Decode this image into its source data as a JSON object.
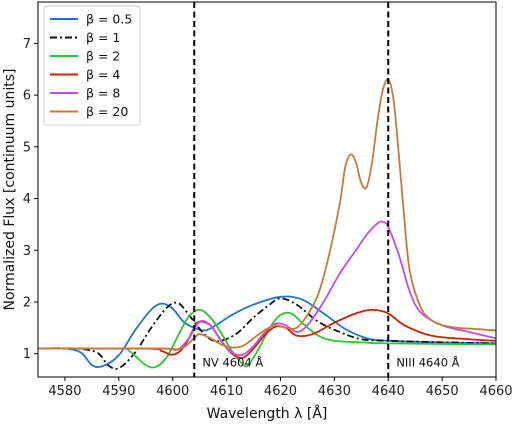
{
  "chart_data": {
    "type": "line",
    "xlabel": "Wavelength λ [Å]",
    "ylabel": "Normalized Flux [continuum units]",
    "xlim": [
      4575,
      4660
    ],
    "ylim": [
      0.55,
      7.8
    ],
    "x_ticks": [
      4580,
      4590,
      4600,
      4610,
      4620,
      4630,
      4640,
      4650,
      4660
    ],
    "y_ticks": [
      1,
      2,
      3,
      4,
      5,
      6,
      7
    ],
    "grid": false,
    "legend_placement": "top-left",
    "series": [
      {
        "name": "β = 0.5",
        "color": "#1f77d4",
        "dash": "solid",
        "points": [
          [
            4575,
            1.1
          ],
          [
            4580,
            1.1
          ],
          [
            4583,
            1.02
          ],
          [
            4585,
            0.78
          ],
          [
            4587,
            0.76
          ],
          [
            4590,
            0.97
          ],
          [
            4593,
            1.45
          ],
          [
            4596,
            1.85
          ],
          [
            4598,
            1.97
          ],
          [
            4600,
            1.87
          ],
          [
            4602,
            1.62
          ],
          [
            4604,
            1.5
          ],
          [
            4606,
            1.45
          ],
          [
            4608,
            1.55
          ],
          [
            4611,
            1.75
          ],
          [
            4615,
            1.95
          ],
          [
            4620,
            2.1
          ],
          [
            4624,
            2.05
          ],
          [
            4628,
            1.78
          ],
          [
            4632,
            1.48
          ],
          [
            4636,
            1.3
          ],
          [
            4640,
            1.25
          ],
          [
            4650,
            1.22
          ],
          [
            4660,
            1.2
          ]
        ]
      },
      {
        "name": "β = 1",
        "color": "#111111",
        "dash": "dashdot",
        "points": [
          [
            4575,
            1.1
          ],
          [
            4582,
            1.1
          ],
          [
            4586,
            1.02
          ],
          [
            4588,
            0.78
          ],
          [
            4590,
            0.72
          ],
          [
            4593,
            1.02
          ],
          [
            4596,
            1.5
          ],
          [
            4599,
            1.9
          ],
          [
            4601,
            1.98
          ],
          [
            4603,
            1.75
          ],
          [
            4605,
            1.48
          ],
          [
            4607,
            1.28
          ],
          [
            4609,
            1.25
          ],
          [
            4612,
            1.4
          ],
          [
            4615,
            1.7
          ],
          [
            4618,
            1.95
          ],
          [
            4620,
            2.07
          ],
          [
            4623,
            1.95
          ],
          [
            4627,
            1.62
          ],
          [
            4631,
            1.42
          ],
          [
            4635,
            1.28
          ],
          [
            4640,
            1.25
          ],
          [
            4650,
            1.22
          ],
          [
            4660,
            1.2
          ]
        ]
      },
      {
        "name": "β = 2",
        "color": "#2ec62e",
        "dash": "solid",
        "points": [
          [
            4575,
            1.1
          ],
          [
            4590,
            1.1
          ],
          [
            4592,
            1.05
          ],
          [
            4595,
            0.78
          ],
          [
            4597,
            0.75
          ],
          [
            4599,
            0.95
          ],
          [
            4601,
            1.35
          ],
          [
            4603,
            1.72
          ],
          [
            4605,
            1.85
          ],
          [
            4607,
            1.7
          ],
          [
            4609,
            1.4
          ],
          [
            4611,
            1.05
          ],
          [
            4613,
            0.8
          ],
          [
            4614,
            0.78
          ],
          [
            4616,
            1.1
          ],
          [
            4618,
            1.5
          ],
          [
            4620,
            1.75
          ],
          [
            4622,
            1.78
          ],
          [
            4624,
            1.6
          ],
          [
            4627,
            1.35
          ],
          [
            4630,
            1.25
          ],
          [
            4635,
            1.22
          ],
          [
            4640,
            1.2
          ],
          [
            4660,
            1.18
          ]
        ]
      },
      {
        "name": "β = 4",
        "color": "#cc2200",
        "dash": "solid",
        "points": [
          [
            4575,
            1.1
          ],
          [
            4595,
            1.1
          ],
          [
            4598,
            1.05
          ],
          [
            4600,
            0.98
          ],
          [
            4602,
            1.12
          ],
          [
            4604,
            1.5
          ],
          [
            4605,
            1.62
          ],
          [
            4607,
            1.55
          ],
          [
            4609,
            1.25
          ],
          [
            4611,
            1.0
          ],
          [
            4613,
            0.92
          ],
          [
            4615,
            1.1
          ],
          [
            4617,
            1.35
          ],
          [
            4619,
            1.52
          ],
          [
            4621,
            1.5
          ],
          [
            4623,
            1.35
          ],
          [
            4626,
            1.38
          ],
          [
            4630,
            1.6
          ],
          [
            4634,
            1.78
          ],
          [
            4637,
            1.85
          ],
          [
            4640,
            1.78
          ],
          [
            4643,
            1.55
          ],
          [
            4648,
            1.35
          ],
          [
            4655,
            1.28
          ],
          [
            4660,
            1.25
          ]
        ]
      },
      {
        "name": "β = 8",
        "color": "#c44de8",
        "dash": "solid",
        "points": [
          [
            4575,
            1.1
          ],
          [
            4595,
            1.1
          ],
          [
            4599,
            1.1
          ],
          [
            4601,
            1.08
          ],
          [
            4603,
            1.3
          ],
          [
            4605,
            1.62
          ],
          [
            4607,
            1.55
          ],
          [
            4609,
            1.25
          ],
          [
            4611,
            1.02
          ],
          [
            4613,
            0.98
          ],
          [
            4615,
            1.15
          ],
          [
            4617,
            1.4
          ],
          [
            4619,
            1.58
          ],
          [
            4621,
            1.55
          ],
          [
            4623,
            1.42
          ],
          [
            4625,
            1.55
          ],
          [
            4628,
            2.0
          ],
          [
            4631,
            2.55
          ],
          [
            4634,
            3.0
          ],
          [
            4636,
            3.3
          ],
          [
            4638,
            3.52
          ],
          [
            4639,
            3.55
          ],
          [
            4640,
            3.45
          ],
          [
            4642,
            2.9
          ],
          [
            4644,
            2.2
          ],
          [
            4646,
            1.8
          ],
          [
            4650,
            1.55
          ],
          [
            4655,
            1.42
          ],
          [
            4660,
            1.3
          ]
        ]
      },
      {
        "name": "β = 20",
        "color": "#c87a3a",
        "dash": "solid",
        "points": [
          [
            4575,
            1.1
          ],
          [
            4598,
            1.1
          ],
          [
            4600,
            1.08
          ],
          [
            4602,
            1.12
          ],
          [
            4604,
            1.3
          ],
          [
            4605,
            1.38
          ],
          [
            4607,
            1.3
          ],
          [
            4609,
            1.18
          ],
          [
            4611,
            1.12
          ],
          [
            4613,
            1.15
          ],
          [
            4615,
            1.3
          ],
          [
            4617,
            1.45
          ],
          [
            4619,
            1.55
          ],
          [
            4621,
            1.5
          ],
          [
            4623,
            1.5
          ],
          [
            4625,
            1.75
          ],
          [
            4627,
            2.15
          ],
          [
            4629,
            2.9
          ],
          [
            4631,
            3.9
          ],
          [
            4632,
            4.6
          ],
          [
            4633,
            4.85
          ],
          [
            4634,
            4.7
          ],
          [
            4635,
            4.3
          ],
          [
            4636,
            4.22
          ],
          [
            4637,
            4.7
          ],
          [
            4638,
            5.5
          ],
          [
            4639,
            6.1
          ],
          [
            4640,
            6.3
          ],
          [
            4641,
            5.9
          ],
          [
            4642,
            4.8
          ],
          [
            4643,
            3.6
          ],
          [
            4644,
            2.6
          ],
          [
            4646,
            1.9
          ],
          [
            4648,
            1.65
          ],
          [
            4650,
            1.55
          ],
          [
            4653,
            1.5
          ],
          [
            4656,
            1.48
          ],
          [
            4660,
            1.45
          ]
        ]
      }
    ],
    "vlines": [
      4604,
      4640
    ],
    "annotations": [
      {
        "text": "NV 4604 Å",
        "x": 4605.5,
        "y": 0.75
      },
      {
        "text": "NIII 4640 Å",
        "x": 4641.5,
        "y": 0.75
      }
    ]
  }
}
